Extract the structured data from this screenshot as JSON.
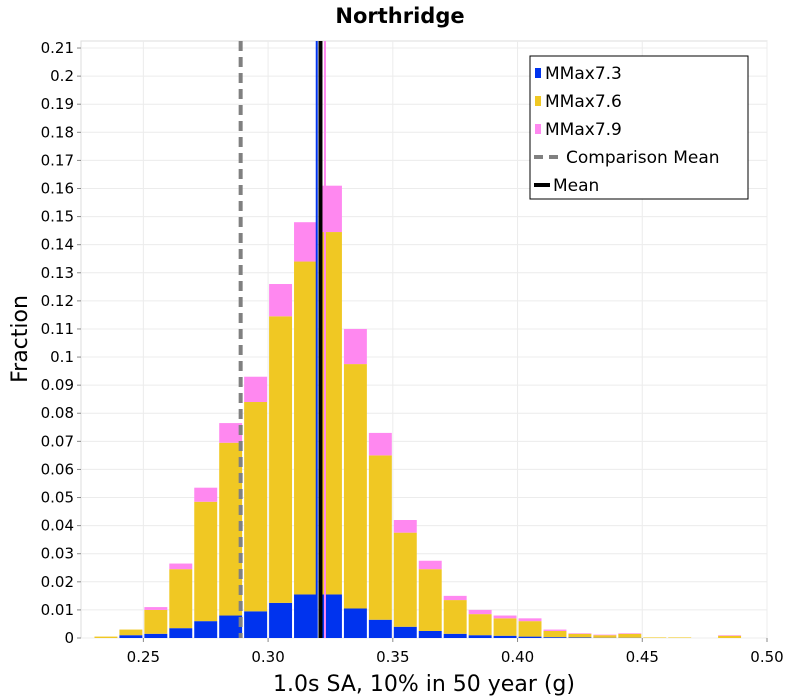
{
  "chart_data": {
    "type": "bar",
    "stacked": true,
    "title": "Northridge",
    "xlabel": "1.0s SA, 10% in 50 year (g)",
    "ylabel": "Fraction",
    "xlim": [
      0.225,
      0.5
    ],
    "ylim": [
      0,
      0.2125
    ],
    "bin_width": 0.01,
    "grid": true,
    "legend_position": "top-right",
    "x_ticks": [
      "0.25",
      "0.30",
      "0.35",
      "0.40",
      "0.45",
      "0.50"
    ],
    "x_tick_values": [
      0.25,
      0.3,
      0.35,
      0.4,
      0.45,
      0.5
    ],
    "y_ticks": [
      "0",
      "0.01",
      "0.02",
      "0.03",
      "0.04",
      "0.05",
      "0.06",
      "0.07",
      "0.08",
      "0.09",
      "0.1",
      "0.11",
      "0.12",
      "0.13",
      "0.14",
      "0.15",
      "0.16",
      "0.17",
      "0.18",
      "0.19",
      "0.2",
      "0.21"
    ],
    "y_tick_values": [
      0,
      0.01,
      0.02,
      0.03,
      0.04,
      0.05,
      0.06,
      0.07,
      0.08,
      0.09,
      0.1,
      0.11,
      0.12,
      0.13,
      0.14,
      0.15,
      0.16,
      0.17,
      0.18,
      0.19,
      0.2,
      0.21
    ],
    "bins": [
      0.235,
      0.245,
      0.255,
      0.265,
      0.275,
      0.285,
      0.295,
      0.305,
      0.315,
      0.325,
      0.335,
      0.345,
      0.355,
      0.365,
      0.375,
      0.385,
      0.395,
      0.405,
      0.415,
      0.425,
      0.435,
      0.445,
      0.455,
      0.465,
      0.475,
      0.485
    ],
    "series": [
      {
        "name": "MMax7.3",
        "color": "#0033ee",
        "values": [
          0,
          0.001,
          0.0015,
          0.0035,
          0.006,
          0.008,
          0.0095,
          0.0125,
          0.0155,
          0.0155,
          0.0105,
          0.0065,
          0.004,
          0.0025,
          0.0015,
          0.001,
          0.0008,
          0.0005,
          0.0003,
          0.0002,
          0.0001,
          0.0001,
          0,
          0,
          0,
          0
        ]
      },
      {
        "name": "MMax7.6",
        "color": "#f0c823",
        "values": [
          0.0005,
          0.002,
          0.0085,
          0.021,
          0.0425,
          0.0615,
          0.0745,
          0.102,
          0.1185,
          0.129,
          0.087,
          0.0585,
          0.0335,
          0.022,
          0.012,
          0.0075,
          0.0062,
          0.0055,
          0.0022,
          0.0013,
          0.0009,
          0.0014,
          0.0002,
          0.0002,
          0,
          0.0008
        ]
      },
      {
        "name": "MMax7.9",
        "color": "#ff88f0",
        "values": [
          0,
          0,
          0.001,
          0.002,
          0.005,
          0.007,
          0.009,
          0.0115,
          0.014,
          0.0165,
          0.0125,
          0.008,
          0.0045,
          0.003,
          0.0015,
          0.0015,
          0.001,
          0.001,
          0.0005,
          0.0002,
          0.0002,
          0.0002,
          0,
          0,
          0,
          0.0002
        ]
      }
    ],
    "reference_lines": [
      {
        "name": "Comparison Mean",
        "x": 0.289,
        "style": "dashed",
        "color": "#808080"
      },
      {
        "name": "Mean",
        "x": 0.321,
        "style": "solid",
        "color": "#000000"
      }
    ],
    "overlay_lines": [
      {
        "series": "MMax7.3",
        "x": 0.3195
      },
      {
        "series": "MMax7.9",
        "x": 0.3228
      }
    ]
  }
}
